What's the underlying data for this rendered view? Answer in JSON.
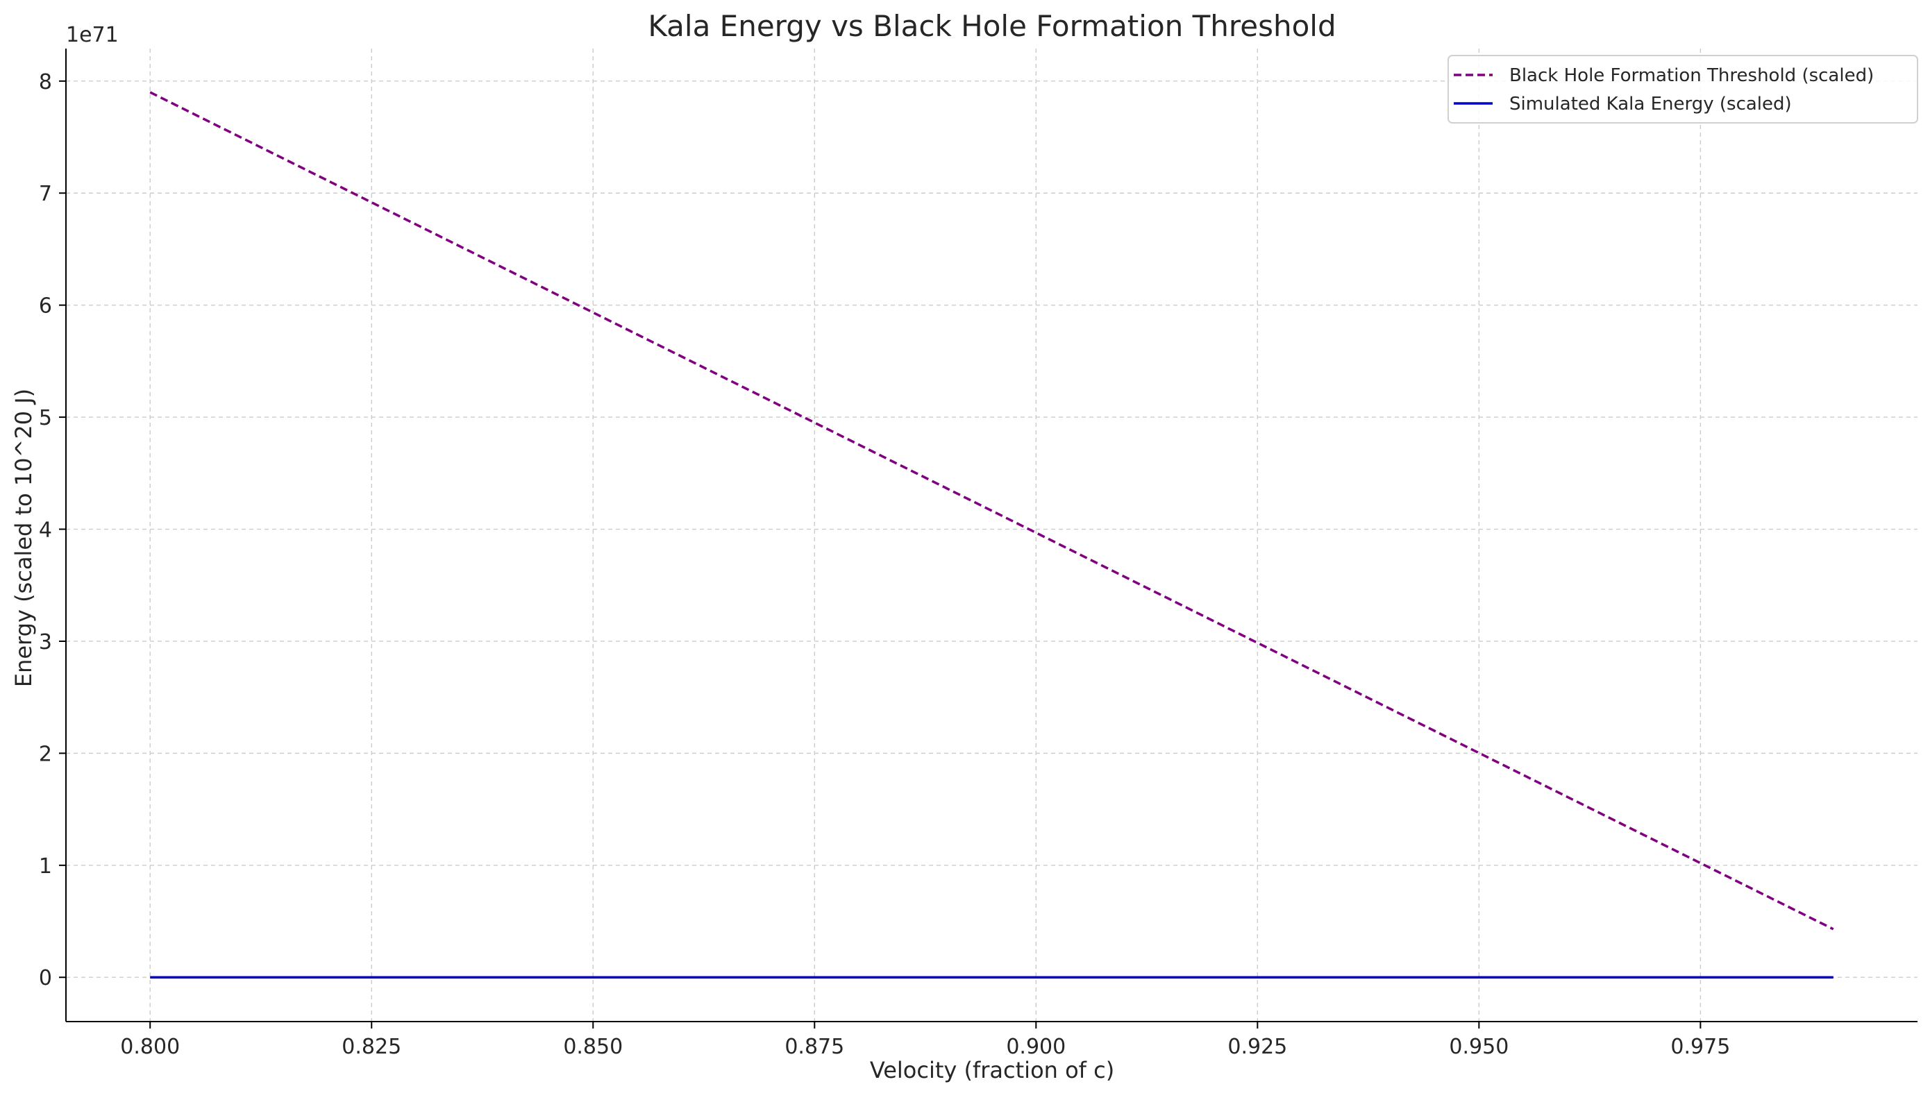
{
  "chart_data": {
    "type": "line",
    "title": "Kala Energy vs Black Hole Formation Threshold",
    "xlabel": "Velocity (fraction of c)",
    "ylabel": "Energy (scaled to 10^20 J)",
    "y_offset_label": "1e71",
    "xlim": [
      0.7905,
      0.9995
    ],
    "ylim": [
      -0.395,
      8.29
    ],
    "xticks": [
      0.8,
      0.825,
      0.85,
      0.875,
      0.9,
      0.925,
      0.95,
      0.975
    ],
    "xtick_labels": [
      "0.800",
      "0.825",
      "0.850",
      "0.875",
      "0.900",
      "0.925",
      "0.950",
      "0.975"
    ],
    "yticks": [
      0,
      1,
      2,
      3,
      4,
      5,
      6,
      7,
      8
    ],
    "ytick_labels": [
      "0",
      "1",
      "2",
      "3",
      "4",
      "5",
      "6",
      "7",
      "8"
    ],
    "grid": true,
    "legend_position": "top-right",
    "series": [
      {
        "name": "Black Hole Formation Threshold (scaled)",
        "color": "#800080",
        "style": "dashed",
        "x": [
          0.8,
          0.99
        ],
        "y": [
          7.9,
          0.43
        ]
      },
      {
        "name": "Simulated Kala Energy (scaled)",
        "color": "#0000cc",
        "style": "solid",
        "x": [
          0.8,
          0.99
        ],
        "y": [
          0.0,
          0.0
        ]
      }
    ]
  }
}
